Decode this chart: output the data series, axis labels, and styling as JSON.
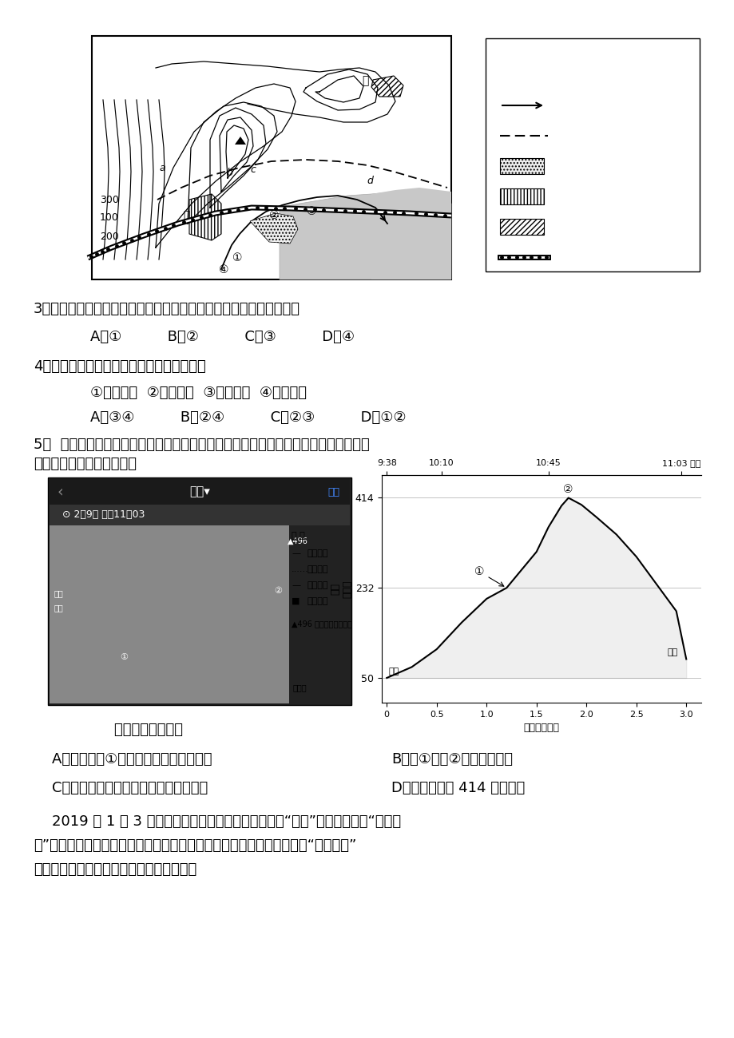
{
  "bg_color": "#ffffff",
  "q3_text": "3．图中城市为了发展外向型经济，拟建一大型港口，最合适的位置是",
  "q3_options": "    A．①          B．②          C．③          D．④",
  "q4_text": "4．图中铁路分布存在着明显的问题，主要是",
  "q4_sub": "    ①穿越河流  ②邻近港湾  ③穿越城区  ④坡度太大",
  "q4_options": "    A．③④          B．②④          C．②③          D．①②",
  "q5_intro1": "5．  下图为某同学手机显示的在我国某地登山运动轨迹图，右图为登山过程中爾坡高度",
  "q5_intro2": "示意图。读图，回答问题。",
  "q5_note": "    该同学登山过程中",
  "q5_opt_a": "    A．自起点至①地，太阳高度角逐渐变大",
  "q5_opt_b": "B．从①地至②地的坡度最降",
  "q5_opt_c": "    C．沿步道下山比乘缆车下山相对高度小",
  "q5_opt_d": "D．翻越了海拔 414 米的山峰",
  "q6_line1": "    2019 年 1 月 3 日，幧娥四号探测器成功着陆在月球“背面”之后，月球车“玉兔二",
  "q6_line2": "号”开始在月面上巡视探测。下左图为月球绕地球公转示意图，下右图为“月兔二号”",
  "q6_line3": "留下的第一道痕迹影像图。完成下列各题。"
}
